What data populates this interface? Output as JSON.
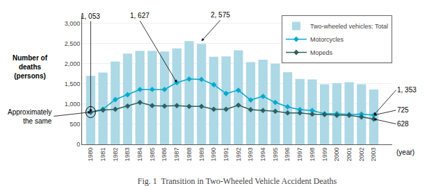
{
  "chart_data": {
    "type": "bar",
    "title": "Fig. 1  Transition in Two-Wheeled Vehicle Accident Deaths",
    "x": [
      1980,
      1981,
      1982,
      1983,
      1984,
      1985,
      1986,
      1987,
      1988,
      1989,
      1990,
      1991,
      1992,
      1993,
      1994,
      1995,
      1996,
      1997,
      1998,
      1999,
      2000,
      2001,
      2002,
      2003
    ],
    "series": [
      {
        "name": "Two-wheeled vehicles: Total",
        "type": "bar",
        "color": "#add8e6",
        "values": [
          1700,
          1780,
          2050,
          2250,
          2320,
          2320,
          2300,
          2380,
          2560,
          2490,
          2170,
          2180,
          2330,
          2040,
          2100,
          2000,
          1790,
          1620,
          1610,
          1490,
          1520,
          1540,
          1490,
          1360
        ]
      },
      {
        "name": "Motorcycles",
        "type": "line",
        "color": "#00aacc",
        "marker": "diamond",
        "values": [
          800,
          870,
          1110,
          1230,
          1360,
          1360,
          1360,
          1530,
          1620,
          1610,
          1480,
          1260,
          1340,
          1100,
          1190,
          1040,
          930,
          860,
          840,
          760,
          760,
          740,
          750,
          725
        ]
      },
      {
        "name": "Mopeds",
        "type": "line",
        "color": "#2d6060",
        "marker": "diamond",
        "values": [
          800,
          850,
          870,
          950,
          1040,
          960,
          950,
          960,
          940,
          940,
          870,
          870,
          970,
          860,
          840,
          820,
          780,
          780,
          750,
          740,
          720,
          720,
          680,
          628
        ]
      }
    ],
    "xlabel": "(year)",
    "ylabel": "Number of\ndeaths\n(persons)",
    "xlim": [
      1979.3,
      2004.5
    ],
    "xticks": [
      1980,
      1981,
      1982,
      1983,
      1984,
      1985,
      1986,
      1987,
      1988,
      1989,
      1990,
      1991,
      1992,
      1993,
      1994,
      1995,
      1996,
      1997,
      1998,
      1999,
      2000,
      2001,
      2002,
      2003
    ],
    "ylim": [
      0,
      3200
    ],
    "yticks": [
      0,
      500,
      {
        "value": 1000,
        "label": "1,000"
      },
      {
        "value": 1500,
        "label": "1,500"
      },
      {
        "value": 2000,
        "label": "2,000"
      },
      {
        "value": 2500,
        "label": "2,500"
      },
      {
        "value": 3000,
        "label": "3,000"
      }
    ],
    "grid": true,
    "legend": "upper right",
    "annotations": [
      {
        "text": "1, 353",
        "x": 2003,
        "y": 725
      },
      {
        "text": "725",
        "x": 2003,
        "y": 725
      },
      {
        "text": "628",
        "x": 2003,
        "y": 628
      },
      {
        "text": "1, 053",
        "x": 1980,
        "y": 800
      },
      {
        "text": "1, 627",
        "x": 1987,
        "y": 1530
      },
      {
        "text": "2, 575",
        "x": 1989,
        "y": 2560
      },
      {
        "text": "Approximately\nthe same",
        "x": 1980,
        "y": 800
      }
    ]
  }
}
